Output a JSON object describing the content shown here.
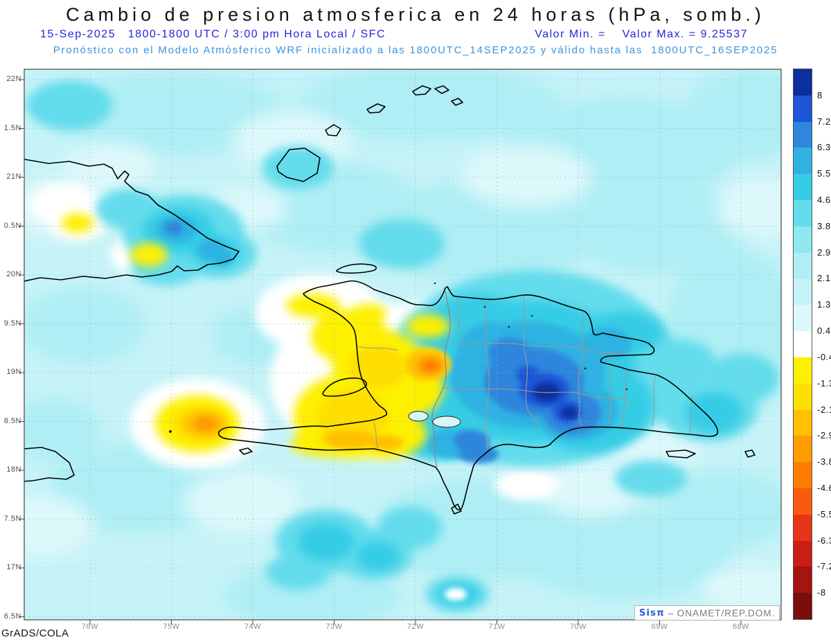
{
  "header": {
    "title": "Cambio de presion atmosferica en 24 horas (hPa, somb.)",
    "subtitle_left": "15-Sep-2025   1800-1800 UTC / 3:00 pm Hora Local / SFC",
    "subtitle_right": "Valor Min. =    Valor Max. = 9.25537",
    "model_line": "Pronóstico con el Modelo Atmósferico WRF inicializado a las 1800UTC_14SEP2025 y válido hasta las  1800UTC_16SEP2025"
  },
  "map": {
    "lat_labels": [
      "22N",
      "1.5N",
      "21N",
      "0.5N",
      "20N",
      "9.5N",
      "19N",
      "8.5N",
      "18N",
      "7.5N",
      "17N",
      "6.5N"
    ],
    "lon_labels": [
      "76W",
      "75W",
      "74W",
      "73W",
      "72W",
      "71W",
      "70W",
      "69W",
      "68W"
    ]
  },
  "colorbar": {
    "tick_labels": [
      "8",
      "7.2",
      "6.3",
      "5.5",
      "4.6",
      "3.8",
      "2.9",
      "2.1",
      "1.3",
      "0.4",
      "-0.4",
      "-1.3",
      "-2.1",
      "-2.9",
      "-3.8",
      "-4.6",
      "-5.5",
      "-6.3",
      "-7.2",
      "-8"
    ],
    "colors": [
      "#0b2f9c",
      "#1d56d6",
      "#2f86dc",
      "#2fb2e2",
      "#35cce6",
      "#63dcec",
      "#8fe7f0",
      "#aeeef4",
      "#c6f3f7",
      "#ddf8fa",
      "#ffffff",
      "#fdf000",
      "#ffdf00",
      "#ffc000",
      "#ff9c00",
      "#ff7d00",
      "#fa5a10",
      "#e83418",
      "#c81e14",
      "#a41410",
      "#7d0c0c"
    ]
  },
  "footer": {
    "credit": "GrADS/COLA",
    "brand": "Sisπ",
    "org": " – ONAMET/REP.DOM."
  },
  "accent_colors": {
    "subtitle_blue": "#2525dd",
    "model_line_blue": "#3b94dd",
    "map_background": "#c6f3f7"
  }
}
